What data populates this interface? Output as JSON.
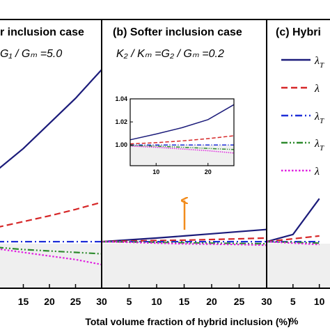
{
  "chart_data": [
    {
      "panel": "a",
      "type": "line",
      "title": "r inclusion case",
      "annotation": "G₁ / Gₘ =5.0",
      "x": [
        10,
        15,
        20,
        25,
        30
      ],
      "xticks": [
        15,
        20,
        25,
        30
      ],
      "series": [
        {
          "color": "#1b1b7a",
          "dash": "solid",
          "values": [
            1.1,
            1.13,
            1.165,
            1.2,
            1.24
          ]
        },
        {
          "color": "#d62728",
          "dash": "dashed",
          "values": [
            1.02,
            1.028,
            1.036,
            1.045,
            1.055
          ]
        },
        {
          "color": "#1f2fd8",
          "dash": "dashdot",
          "values": [
            1.0,
            1.0,
            1.0,
            1.0,
            1.0
          ]
        },
        {
          "color": "#2e8b2e",
          "dash": "dashdotdot",
          "values": [
            0.992,
            0.989,
            0.987,
            0.985,
            0.983
          ]
        },
        {
          "color": "#e020e0",
          "dash": "dotted",
          "values": [
            0.99,
            0.985,
            0.98,
            0.975,
            0.968
          ]
        }
      ]
    },
    {
      "panel": "b",
      "type": "line",
      "title": "(b) Softer inclusion case",
      "annotation": "K₂ / Kₘ =G₂ / Gₘ =0.2",
      "x": [
        0,
        5,
        10,
        15,
        20,
        25,
        30
      ],
      "xticks": [
        5,
        10,
        15,
        20,
        25,
        30
      ],
      "series": [
        {
          "color": "#1b1b7a",
          "dash": "solid",
          "values": [
            1.0,
            1.0025,
            1.005,
            1.008,
            1.011,
            1.014,
            1.017
          ]
        },
        {
          "color": "#d62728",
          "dash": "dashed",
          "values": [
            1.0,
            1.001,
            1.0015,
            1.002,
            1.003,
            1.004,
            1.005
          ]
        },
        {
          "color": "#1f2fd8",
          "dash": "dashdot",
          "values": [
            1.0,
            1.0,
            1.0,
            1.0,
            1.0,
            1.0,
            1.0
          ]
        },
        {
          "color": "#2e8b2e",
          "dash": "dashdotdot",
          "values": [
            1.0,
            0.9995,
            0.999,
            0.9985,
            0.998,
            0.9975,
            0.997
          ]
        },
        {
          "color": "#e020e0",
          "dash": "dotted",
          "values": [
            1.0,
            0.999,
            0.998,
            0.997,
            0.9965,
            0.996,
            0.995
          ]
        }
      ]
    },
    {
      "panel": "b-inset",
      "type": "line",
      "x": [
        5,
        10,
        15,
        20,
        25
      ],
      "xticks": [
        10,
        20
      ],
      "yticks": [
        "1.00",
        "1.02",
        "1.04"
      ],
      "series": [
        {
          "color": "#1b1b7a",
          "dash": "solid",
          "values": [
            1.0045,
            1.0095,
            1.015,
            1.022,
            1.035
          ]
        },
        {
          "color": "#d62728",
          "dash": "dashed",
          "values": [
            1.001,
            1.002,
            1.0035,
            1.0055,
            1.008
          ]
        },
        {
          "color": "#1f2fd8",
          "dash": "dashdot",
          "values": [
            1.0,
            1.0,
            1.0,
            1.0,
            1.0
          ]
        },
        {
          "color": "#2e8b2e",
          "dash": "dashdotdot",
          "values": [
            0.9995,
            0.999,
            0.998,
            0.997,
            0.996
          ]
        },
        {
          "color": "#e020e0",
          "dash": "dotted",
          "values": [
            0.999,
            0.998,
            0.9965,
            0.995,
            0.993
          ]
        }
      ]
    },
    {
      "panel": "c",
      "type": "line",
      "title": "(c) Hybri",
      "x": [
        0,
        5,
        10
      ],
      "xticks": [
        5,
        10
      ],
      "xtick_labels": [
        "5",
        "10"
      ],
      "series": [
        {
          "color": "#1b1b7a",
          "dash": "solid",
          "values": [
            1.0,
            1.01,
            1.06
          ]
        },
        {
          "color": "#d62728",
          "dash": "dashed",
          "values": [
            1.0,
            1.004,
            1.008
          ]
        },
        {
          "color": "#1f2fd8",
          "dash": "dashdot",
          "values": [
            1.0,
            1.0,
            1.0
          ]
        },
        {
          "color": "#2e8b2e",
          "dash": "dashdotdot",
          "values": [
            1.0,
            0.999,
            0.998
          ]
        },
        {
          "color": "#e020e0",
          "dash": "dotted",
          "values": [
            1.0,
            0.998,
            0.996
          ]
        }
      ]
    }
  ],
  "xaxis_label": "Total volume fraction of hybrid inclusion (%)",
  "percent_sign": "%",
  "legend": {
    "entries": [
      {
        "symbol": "λ",
        "sub": "T",
        "color": "#1b1b7a"
      },
      {
        "symbol": "λ",
        "sub": "",
        "color": "#d62728"
      },
      {
        "symbol": "λ",
        "sub": "T",
        "color": "#1f2fd8"
      },
      {
        "symbol": "λ",
        "sub": "T",
        "color": "#2e8b2e"
      },
      {
        "symbol": "λ",
        "sub": "",
        "color": "#e020e0"
      }
    ]
  },
  "colors": {
    "axes": "#000000",
    "shade": "#efefef"
  }
}
